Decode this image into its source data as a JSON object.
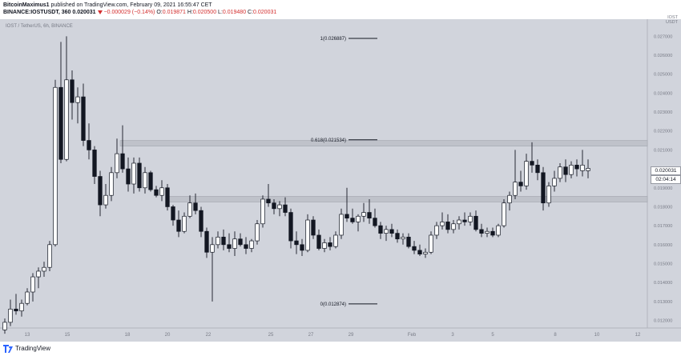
{
  "header": {
    "author": "BitcoinMaximus1",
    "published": "published on TradingView.com, February 09, 2021 16:55:47 CET",
    "symbol_line_prefix": "BINANCE:IOSTUSDT, 360",
    "last": "0.020031",
    "change": "−0.000029 (−0.14%)",
    "o_label": "O:",
    "o_value": "0.019871",
    "h_label": "H:",
    "h_value": "0.020500",
    "l_label": "L:",
    "l_value": "0.019480",
    "c_label": "C:",
    "c_value": "0.020031"
  },
  "footer": {
    "brand": "TradingView"
  },
  "price_scale_label": "IOST\nUSDT",
  "price_tag": {
    "price": "0.020031",
    "countdown": "02:04:14"
  },
  "colors": {
    "background": "#d1d4dc",
    "up_fill": "#ffffff",
    "down_fill": "#131722",
    "wick": "#131722",
    "zone": "#bfc2ca",
    "axis_text": "#787b86"
  },
  "chart_data": {
    "type": "candlestick",
    "title": "IOST / TetherUS, 6h, BINANCE",
    "x_tick_labels": [
      "13",
      "15",
      "18",
      "20",
      "22",
      "25",
      "27",
      "29",
      "Feb",
      "3",
      "5",
      "8",
      "10",
      "12"
    ],
    "y_tick_labels": [
      "0.027000",
      "0.026000",
      "0.025000",
      "0.024000",
      "0.023000",
      "0.022000",
      "0.021000",
      "0.020000",
      "0.019000",
      "0.018000",
      "0.017000",
      "0.016000",
      "0.015000",
      "0.014000",
      "0.013000",
      "0.012000"
    ],
    "ylim": [
      0.0116,
      0.0279
    ],
    "fib_levels": [
      {
        "label": "1(0.026887)",
        "value": 0.026887
      },
      {
        "label": "0.618(0.021534)",
        "value": 0.021534
      },
      {
        "label": "0(0.012874)",
        "value": 0.012874
      }
    ],
    "resistance_zone": [
      0.0212,
      0.0215
    ],
    "support_zone": [
      0.01825,
      0.01855
    ],
    "candles": [
      [
        0.0115,
        0.0121,
        0.0113,
        0.0119
      ],
      [
        0.0119,
        0.0131,
        0.0117,
        0.0126
      ],
      [
        0.0126,
        0.0134,
        0.0123,
        0.0125
      ],
      [
        0.0125,
        0.0131,
        0.0122,
        0.0129
      ],
      [
        0.0129,
        0.0137,
        0.0128,
        0.0135
      ],
      [
        0.0135,
        0.0145,
        0.013,
        0.0143
      ],
      [
        0.0143,
        0.0148,
        0.0137,
        0.0146
      ],
      [
        0.0146,
        0.0151,
        0.0143,
        0.0148
      ],
      [
        0.0148,
        0.0162,
        0.0146,
        0.016
      ],
      [
        0.016,
        0.0247,
        0.0159,
        0.0243
      ],
      [
        0.0243,
        0.0267,
        0.0203,
        0.0205
      ],
      [
        0.0205,
        0.027,
        0.0204,
        0.0247
      ],
      [
        0.0247,
        0.0252,
        0.0226,
        0.0235
      ],
      [
        0.0235,
        0.0243,
        0.0224,
        0.0238
      ],
      [
        0.0238,
        0.0245,
        0.0212,
        0.0215
      ],
      [
        0.0215,
        0.0224,
        0.0205,
        0.021
      ],
      [
        0.021,
        0.0212,
        0.0192,
        0.0196
      ],
      [
        0.0196,
        0.0199,
        0.0175,
        0.0181
      ],
      [
        0.0181,
        0.0192,
        0.0179,
        0.0186
      ],
      [
        0.0186,
        0.0201,
        0.0183,
        0.0198
      ],
      [
        0.0198,
        0.0216,
        0.0195,
        0.0208
      ],
      [
        0.0208,
        0.0223,
        0.0198,
        0.02
      ],
      [
        0.02,
        0.0206,
        0.0188,
        0.0192
      ],
      [
        0.0192,
        0.0206,
        0.0187,
        0.0203
      ],
      [
        0.0203,
        0.0206,
        0.0188,
        0.019
      ],
      [
        0.019,
        0.0201,
        0.0187,
        0.0198
      ],
      [
        0.0198,
        0.0199,
        0.0188,
        0.0189
      ],
      [
        0.0189,
        0.0191,
        0.0185,
        0.0186
      ],
      [
        0.0186,
        0.0194,
        0.0183,
        0.019
      ],
      [
        0.019,
        0.0192,
        0.0178,
        0.018
      ],
      [
        0.018,
        0.0181,
        0.017,
        0.0173
      ],
      [
        0.0173,
        0.0178,
        0.0164,
        0.0167
      ],
      [
        0.0167,
        0.0177,
        0.0166,
        0.0175
      ],
      [
        0.0175,
        0.0186,
        0.0174,
        0.0182
      ],
      [
        0.0182,
        0.0187,
        0.0176,
        0.0178
      ],
      [
        0.0178,
        0.018,
        0.0164,
        0.0167
      ],
      [
        0.0167,
        0.0169,
        0.0153,
        0.0156
      ],
      [
        0.0156,
        0.0164,
        0.013,
        0.016
      ],
      [
        0.016,
        0.0167,
        0.0158,
        0.0164
      ],
      [
        0.0164,
        0.0168,
        0.0157,
        0.016
      ],
      [
        0.016,
        0.0166,
        0.0156,
        0.0158
      ],
      [
        0.0158,
        0.0167,
        0.0154,
        0.0163
      ],
      [
        0.0163,
        0.0166,
        0.0159,
        0.016
      ],
      [
        0.016,
        0.0164,
        0.0155,
        0.0158
      ],
      [
        0.0158,
        0.0163,
        0.0156,
        0.0162
      ],
      [
        0.0162,
        0.0173,
        0.016,
        0.0171
      ],
      [
        0.0171,
        0.0186,
        0.0169,
        0.0184
      ],
      [
        0.0184,
        0.0192,
        0.018,
        0.0182
      ],
      [
        0.0182,
        0.0184,
        0.0176,
        0.0179
      ],
      [
        0.0179,
        0.0183,
        0.0175,
        0.0181
      ],
      [
        0.0181,
        0.0185,
        0.0175,
        0.0177
      ],
      [
        0.0177,
        0.0179,
        0.0158,
        0.0162
      ],
      [
        0.0162,
        0.0167,
        0.0155,
        0.016
      ],
      [
        0.016,
        0.0163,
        0.0154,
        0.0157
      ],
      [
        0.0157,
        0.0176,
        0.0156,
        0.0173
      ],
      [
        0.0173,
        0.0175,
        0.0163,
        0.0165
      ],
      [
        0.0165,
        0.0168,
        0.0157,
        0.0158
      ],
      [
        0.0158,
        0.0163,
        0.0156,
        0.0161
      ],
      [
        0.0161,
        0.0164,
        0.0157,
        0.0159
      ],
      [
        0.0159,
        0.0167,
        0.0158,
        0.0165
      ],
      [
        0.0165,
        0.0179,
        0.0163,
        0.0176
      ],
      [
        0.0176,
        0.019,
        0.0172,
        0.0174
      ],
      [
        0.0174,
        0.0179,
        0.0171,
        0.0172
      ],
      [
        0.0172,
        0.0176,
        0.0167,
        0.0175
      ],
      [
        0.0175,
        0.0182,
        0.0172,
        0.0177
      ],
      [
        0.0177,
        0.0184,
        0.0171,
        0.0174
      ],
      [
        0.0174,
        0.0179,
        0.0169,
        0.017
      ],
      [
        0.017,
        0.0172,
        0.0163,
        0.0166
      ],
      [
        0.0166,
        0.017,
        0.0162,
        0.0168
      ],
      [
        0.0168,
        0.0171,
        0.0164,
        0.0166
      ],
      [
        0.0166,
        0.0168,
        0.0161,
        0.0163
      ],
      [
        0.0163,
        0.0166,
        0.016,
        0.0164
      ],
      [
        0.0164,
        0.0166,
        0.0158,
        0.0159
      ],
      [
        0.0159,
        0.0162,
        0.0155,
        0.0157
      ],
      [
        0.0157,
        0.016,
        0.0154,
        0.0155
      ],
      [
        0.0155,
        0.0158,
        0.0153,
        0.0156
      ],
      [
        0.0156,
        0.0167,
        0.0155,
        0.0165
      ],
      [
        0.0165,
        0.0172,
        0.0163,
        0.017
      ],
      [
        0.017,
        0.0177,
        0.0168,
        0.0172
      ],
      [
        0.0172,
        0.0176,
        0.0166,
        0.0168
      ],
      [
        0.0168,
        0.0173,
        0.0166,
        0.0171
      ],
      [
        0.0171,
        0.0175,
        0.0168,
        0.0173
      ],
      [
        0.0173,
        0.0177,
        0.017,
        0.0172
      ],
      [
        0.0172,
        0.0177,
        0.017,
        0.0175
      ],
      [
        0.0175,
        0.0178,
        0.0167,
        0.0168
      ],
      [
        0.0168,
        0.0171,
        0.0164,
        0.0166
      ],
      [
        0.0166,
        0.0169,
        0.0164,
        0.0167
      ],
      [
        0.0167,
        0.0169,
        0.0164,
        0.0165
      ],
      [
        0.0165,
        0.0171,
        0.0164,
        0.017
      ],
      [
        0.017,
        0.0184,
        0.0169,
        0.0182
      ],
      [
        0.0182,
        0.0188,
        0.0178,
        0.0186
      ],
      [
        0.0186,
        0.021,
        0.0184,
        0.0193
      ],
      [
        0.0193,
        0.0199,
        0.0188,
        0.0191
      ],
      [
        0.0191,
        0.0208,
        0.0189,
        0.0204
      ],
      [
        0.0204,
        0.0214,
        0.0198,
        0.0202
      ],
      [
        0.0202,
        0.0205,
        0.0194,
        0.0198
      ],
      [
        0.0198,
        0.0201,
        0.0178,
        0.0182
      ],
      [
        0.0182,
        0.0193,
        0.018,
        0.0191
      ],
      [
        0.0191,
        0.0199,
        0.0188,
        0.0195
      ],
      [
        0.0195,
        0.0203,
        0.0193,
        0.0201
      ],
      [
        0.0201,
        0.0205,
        0.0193,
        0.0197
      ],
      [
        0.0197,
        0.0204,
        0.0195,
        0.0202
      ],
      [
        0.0202,
        0.0205,
        0.0196,
        0.02
      ],
      [
        0.0199,
        0.021,
        0.0196,
        0.0202
      ],
      [
        0.0199,
        0.0205,
        0.0195,
        0.02003
      ]
    ]
  }
}
